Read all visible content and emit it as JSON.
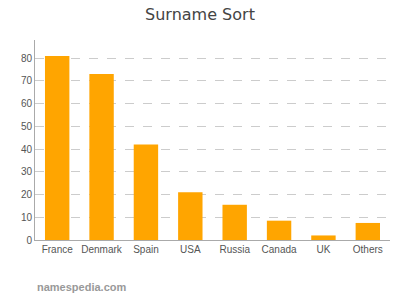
{
  "chart_data": {
    "type": "bar",
    "title": "Surname Sort",
    "categories": [
      "France",
      "Denmark",
      "Spain",
      "USA",
      "Russia",
      "Canada",
      "UK",
      "Others"
    ],
    "values": [
      81,
      73,
      42,
      21,
      15.5,
      8.5,
      2,
      7.5
    ],
    "color": "#FFA500",
    "ylim": [
      0,
      88
    ],
    "yticks": [
      0,
      10,
      20,
      30,
      40,
      50,
      60,
      70,
      80
    ],
    "grid": true,
    "annotations": [
      "namespedia.com"
    ]
  }
}
